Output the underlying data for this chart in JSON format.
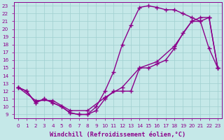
{
  "xlabel": "Windchill (Refroidissement éolien,°C)",
  "xlim": [
    -0.5,
    23.5
  ],
  "ylim": [
    8.5,
    23.5
  ],
  "xticks": [
    0,
    1,
    2,
    3,
    4,
    5,
    6,
    7,
    8,
    9,
    10,
    11,
    12,
    13,
    14,
    15,
    16,
    17,
    18,
    19,
    20,
    21,
    22,
    23
  ],
  "yticks": [
    9,
    10,
    11,
    12,
    13,
    14,
    15,
    16,
    17,
    18,
    19,
    20,
    21,
    22,
    23
  ],
  "bg_color": "#c5e8e8",
  "grid_color": "#9fcfcf",
  "line_color": "#8b008b",
  "curve_bottom_x": [
    0,
    1,
    2,
    3,
    4,
    5,
    6,
    7,
    8,
    9,
    10,
    11,
    12,
    13,
    14,
    15,
    16,
    17,
    18,
    19,
    20,
    21,
    22,
    23
  ],
  "curve_bottom_y": [
    12.5,
    12.0,
    10.5,
    11.0,
    10.5,
    10.0,
    9.2,
    9.0,
    9.0,
    9.5,
    11.0,
    12.0,
    12.0,
    12.0,
    15.0,
    15.0,
    15.5,
    16.0,
    17.5,
    19.5,
    21.0,
    21.5,
    21.5,
    15.0
  ],
  "curve_top_x": [
    0,
    1,
    2,
    3,
    4,
    5,
    6,
    7,
    8,
    9,
    10,
    11,
    12,
    13,
    14,
    15,
    16,
    17,
    18,
    19,
    20,
    21,
    22,
    23
  ],
  "curve_top_y": [
    12.5,
    12.0,
    10.5,
    11.0,
    10.5,
    10.0,
    9.2,
    9.0,
    9.0,
    10.0,
    12.0,
    14.5,
    18.0,
    20.5,
    22.8,
    23.0,
    22.8,
    22.5,
    22.5,
    22.0,
    21.5,
    21.0,
    17.5,
    15.0
  ],
  "curve_diag_x": [
    0,
    2,
    4,
    6,
    8,
    10,
    12,
    14,
    16,
    18,
    20,
    21,
    22,
    23
  ],
  "curve_diag_y": [
    12.5,
    10.8,
    10.8,
    9.5,
    9.5,
    11.2,
    12.5,
    15.0,
    15.8,
    17.8,
    21.0,
    21.0,
    21.5,
    15.0
  ],
  "marker": "+",
  "markersize": 4,
  "markeredgewidth": 1.0,
  "linewidth": 1.0,
  "tick_fontsize": 5.2,
  "label_fontsize": 6.2
}
